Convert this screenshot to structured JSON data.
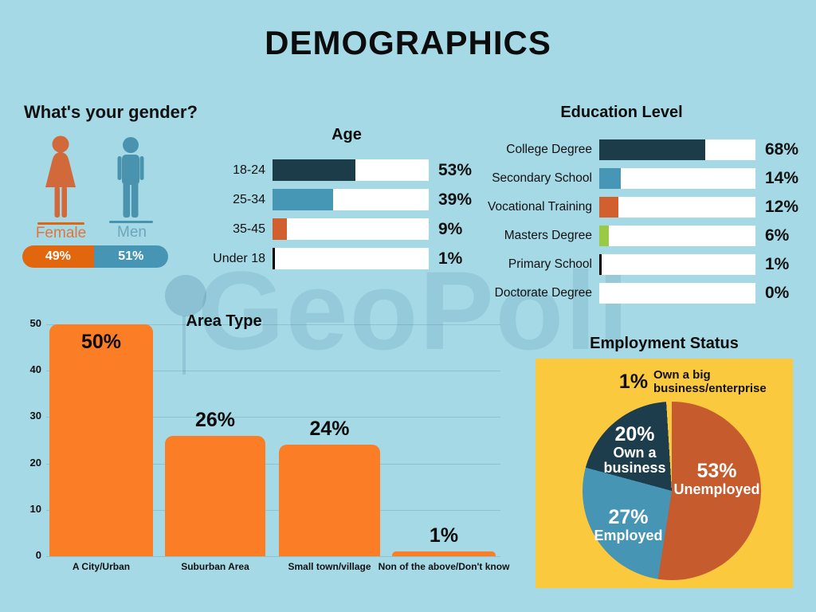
{
  "page": {
    "title": "DEMOGRAPHICS",
    "watermark": "GeoPoll",
    "background_color": "#a5d9e6",
    "panel_color": "#fbc93e"
  },
  "chart_data": [
    {
      "type": "bar",
      "variant": "stacked-pill",
      "title": "What's your gender?",
      "categories": [
        "Female",
        "Men"
      ],
      "values": [
        49,
        51
      ],
      "display_values": [
        "49%",
        "51%"
      ],
      "segment_colors": [
        "#e2660e",
        "#4695b5"
      ],
      "icon_colors": [
        "#d2693a",
        "#4a93ae"
      ],
      "label_colors": [
        "#e0763c",
        "#6ba6bd"
      ]
    },
    {
      "type": "bar",
      "orientation": "horizontal",
      "title": "Age",
      "categories": [
        "18-24",
        "25-34",
        "35-45",
        "Under 18"
      ],
      "values": [
        53,
        39,
        9,
        1
      ],
      "display_values": [
        "53%",
        "39%",
        "9%",
        "1%"
      ],
      "bar_colors": [
        "#1d3c4a",
        "#4697b6",
        "#d2602f",
        "#000000"
      ],
      "track_color": "#ffffff",
      "xlim": [
        0,
        100
      ]
    },
    {
      "type": "bar",
      "orientation": "horizontal",
      "title": "Education Level",
      "categories": [
        "College Degree",
        "Secondary School",
        "Vocational Training",
        "Masters Degree",
        "Primary School",
        "Doctorate Degree"
      ],
      "values": [
        68,
        14,
        12,
        6,
        1,
        0
      ],
      "display_values": [
        "68%",
        "14%",
        "12%",
        "6%",
        "1%",
        "0%"
      ],
      "bar_colors": [
        "#1d3c4a",
        "#4697b6",
        "#d2602f",
        "#9aca45",
        "#000000",
        "none"
      ],
      "track_color": "#ffffff",
      "xlim": [
        0,
        100
      ]
    },
    {
      "type": "bar",
      "orientation": "vertical",
      "title": "Area Type",
      "categories": [
        "A City/Urban",
        "Suburban Area",
        "Small town/village",
        "Non of the above/Don't know"
      ],
      "values": [
        50,
        26,
        24,
        1
      ],
      "display_values": [
        "50%",
        "26%",
        "24%",
        "1%"
      ],
      "bar_color": "#fb7d26",
      "ylim": [
        0,
        50
      ],
      "yticks": [
        0,
        10,
        20,
        30,
        40,
        50
      ],
      "grid": true
    },
    {
      "type": "pie",
      "title": "Employment Status",
      "start_angle_deg": 0,
      "direction": "clockwise",
      "panel_color": "#fbc93e",
      "slices": [
        {
          "label": "Unemployed",
          "value": 53,
          "pct_label": "53%",
          "color": "#c65b2d"
        },
        {
          "label": "Employed",
          "value": 27,
          "pct_label": "27%",
          "color": "#4695b5"
        },
        {
          "label": "Own a business",
          "value": 20,
          "pct_label": "20%",
          "color": "#1d3d4c"
        },
        {
          "label": "Own a big business/enterprise",
          "value": 1,
          "pct_label": "1%",
          "color": "#fbc93e"
        }
      ]
    }
  ]
}
